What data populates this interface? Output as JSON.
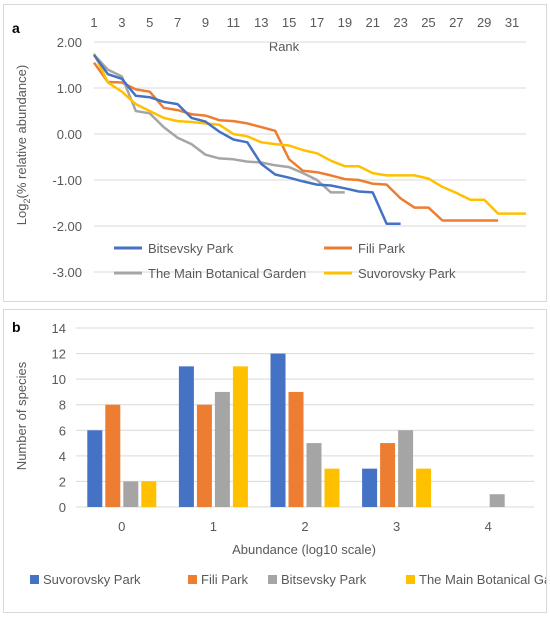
{
  "colors": {
    "blue": "#4472c4",
    "orange": "#ed7d31",
    "gray": "#a5a5a5",
    "gold": "#ffc000",
    "axis_text": "#595959",
    "grid": "#d9d9d9"
  },
  "chart_data": [
    {
      "panel_label": "a",
      "type": "line",
      "x_axis_position": "top",
      "xlabel": "Rank",
      "ylabel_main": "Log",
      "ylabel_sub": "2",
      "ylabel_rest": "(% relative abundance)",
      "xlim": [
        1,
        32
      ],
      "ylim": [
        -3,
        2
      ],
      "x_ticks": [
        "1",
        "3",
        "5",
        "7",
        "9",
        "11",
        "13",
        "15",
        "17",
        "19",
        "21",
        "23",
        "25",
        "27",
        "29",
        "31"
      ],
      "y_ticks": [
        "2.00",
        "1.00",
        "0.00",
        "-1.00",
        "-2.00",
        "-3.00"
      ],
      "grid": "horizontal",
      "legend_position": "bottom",
      "series": [
        {
          "name": "Bitsevsky Park",
          "color": "#4472c4",
          "x": [
            1,
            2,
            3,
            4,
            5,
            6,
            7,
            8,
            9,
            10,
            11,
            12,
            13,
            14,
            15,
            16,
            17,
            18,
            19,
            20,
            21,
            22,
            23
          ],
          "y": [
            1.72,
            1.3,
            1.2,
            0.83,
            0.8,
            0.7,
            0.65,
            0.35,
            0.27,
            0.05,
            -0.12,
            -0.18,
            -0.65,
            -0.88,
            -0.95,
            -1.03,
            -1.1,
            -1.12,
            -1.18,
            -1.25,
            -1.27,
            -1.95,
            -1.95
          ]
        },
        {
          "name": "Fili Park",
          "color": "#ed7d31",
          "x": [
            1,
            2,
            3,
            4,
            5,
            6,
            7,
            8,
            9,
            10,
            11,
            12,
            13,
            14,
            15,
            16,
            17,
            18,
            19,
            20,
            21,
            22,
            23,
            24,
            25,
            26,
            27,
            28,
            29,
            30
          ],
          "y": [
            1.55,
            1.13,
            1.12,
            0.97,
            0.92,
            0.57,
            0.52,
            0.43,
            0.4,
            0.3,
            0.28,
            0.23,
            0.15,
            0.07,
            -0.55,
            -0.8,
            -0.83,
            -0.9,
            -0.98,
            -1.0,
            -1.08,
            -1.1,
            -1.4,
            -1.6,
            -1.6,
            -1.88,
            -1.88,
            -1.88,
            -1.88,
            -1.88
          ]
        },
        {
          "name": "The Main Botanical Garden",
          "color": "#a5a5a5",
          "x": [
            1,
            2,
            3,
            4,
            5,
            6,
            7,
            8,
            9,
            10,
            11,
            12,
            13,
            14,
            15,
            16,
            17,
            18,
            19
          ],
          "y": [
            1.72,
            1.4,
            1.25,
            0.5,
            0.45,
            0.15,
            -0.08,
            -0.22,
            -0.45,
            -0.53,
            -0.55,
            -0.6,
            -0.62,
            -0.68,
            -0.72,
            -0.85,
            -1.0,
            -1.27,
            -1.27
          ]
        },
        {
          "name": "Suvorovsky Park",
          "color": "#ffc000",
          "x": [
            1,
            2,
            3,
            4,
            5,
            6,
            7,
            8,
            9,
            10,
            11,
            12,
            13,
            14,
            15,
            16,
            17,
            18,
            19,
            20,
            21,
            22,
            23,
            24,
            25,
            26,
            27,
            28,
            29,
            30,
            31,
            32
          ],
          "y": [
            1.75,
            1.12,
            0.92,
            0.65,
            0.5,
            0.35,
            0.28,
            0.26,
            0.23,
            0.2,
            0.0,
            -0.05,
            -0.18,
            -0.22,
            -0.25,
            -0.35,
            -0.42,
            -0.58,
            -0.7,
            -0.7,
            -0.85,
            -0.9,
            -0.9,
            -0.9,
            -0.97,
            -1.15,
            -1.28,
            -1.43,
            -1.43,
            -1.73,
            -1.73,
            -1.73
          ]
        }
      ]
    },
    {
      "panel_label": "b",
      "type": "bar",
      "categories": [
        "0",
        "1",
        "2",
        "3",
        "4"
      ],
      "xlabel": "Abundance (log10 scale)",
      "ylabel": "Number of species",
      "ylim": [
        0,
        14
      ],
      "y_ticks": [
        "0",
        "2",
        "4",
        "6",
        "8",
        "10",
        "12",
        "14"
      ],
      "grid": "horizontal",
      "legend_position": "bottom",
      "series": [
        {
          "name": "Suvorovsky Park",
          "color": "#4472c4",
          "values": [
            6,
            11,
            12,
            3,
            0
          ]
        },
        {
          "name": "Fili Park",
          "color": "#ed7d31",
          "values": [
            8,
            8,
            9,
            5,
            0
          ]
        },
        {
          "name": "Bitsevsky Park",
          "color": "#a5a5a5",
          "values": [
            2,
            9,
            5,
            6,
            1
          ]
        },
        {
          "name": "The Main Botanical Garden",
          "color": "#ffc000",
          "values": [
            2,
            11,
            3,
            3,
            0
          ]
        }
      ]
    }
  ]
}
